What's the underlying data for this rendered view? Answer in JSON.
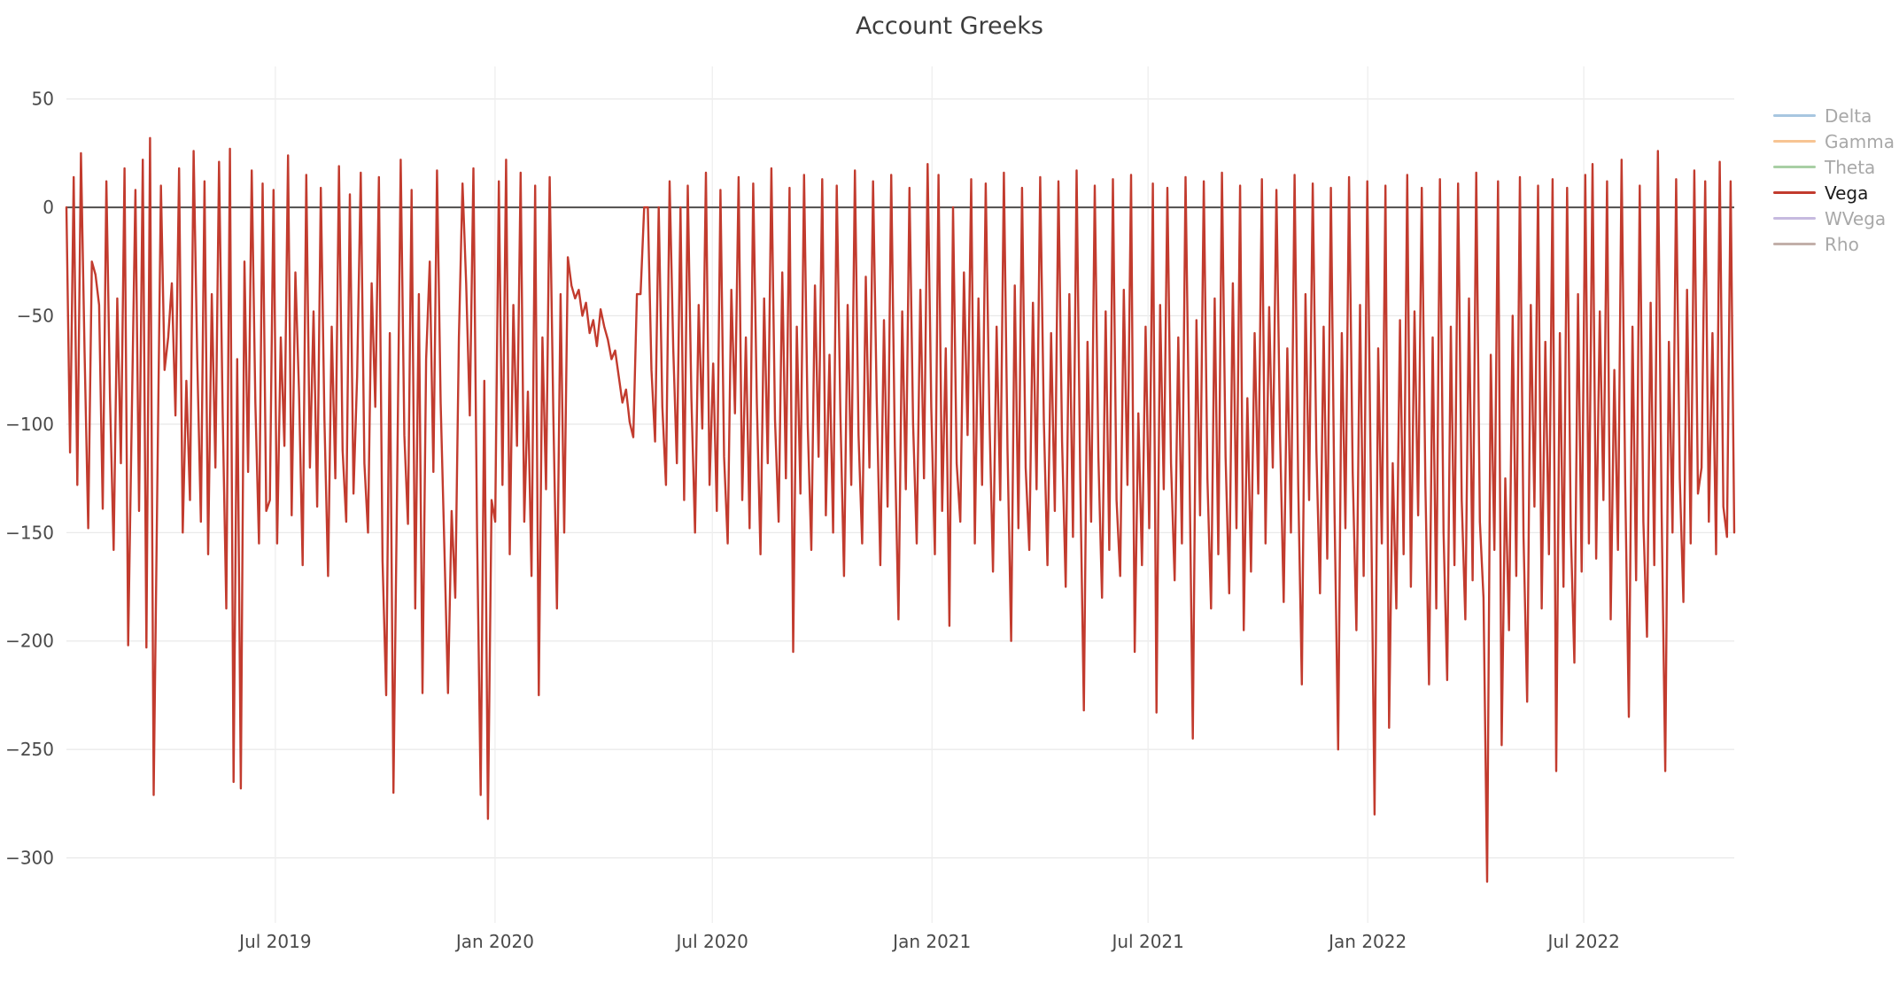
{
  "title": "Account Greeks",
  "colors": {
    "background": "#ffffff",
    "grid_h": "#e9e9e9",
    "grid_v": "#eeeeee",
    "zero_line": "#3b3b3b",
    "tick_text": "#4a4a4a",
    "title_text": "#3d3d3d",
    "legend_text_muted": "#a8a8a8",
    "legend_text_active": "#1c1c1c"
  },
  "legend": {
    "position": "right",
    "items": [
      {
        "name": "Delta",
        "color": "#a7c6e0",
        "muted": true
      },
      {
        "name": "Gamma",
        "color": "#f7c493",
        "muted": true
      },
      {
        "name": "Theta",
        "color": "#a8cfa4",
        "muted": true
      },
      {
        "name": "Vega",
        "color": "#c23b2e",
        "muted": false
      },
      {
        "name": "WVega",
        "color": "#c6badf",
        "muted": true
      },
      {
        "name": "Rho",
        "color": "#c2afa9",
        "muted": true
      }
    ]
  },
  "chart_data": {
    "type": "line",
    "title": "Account Greeks",
    "xlabel": "",
    "ylabel": "",
    "grid": true,
    "legend_position": "right",
    "x_start": "2019-01-07",
    "x_end": "2022-11-04",
    "ylim": [
      -330,
      65
    ],
    "yticks": [
      50,
      0,
      -50,
      -100,
      -150,
      -200,
      -250,
      -300
    ],
    "xticks": [
      {
        "label": "Jul 2019",
        "date": "2019-07-01"
      },
      {
        "label": "Jan 2020",
        "date": "2020-01-01"
      },
      {
        "label": "Jul 2020",
        "date": "2020-07-01"
      },
      {
        "label": "Jan 2021",
        "date": "2021-01-01"
      },
      {
        "label": "Jul 2021",
        "date": "2021-07-01"
      },
      {
        "label": "Jan 2022",
        "date": "2022-01-01"
      },
      {
        "label": "Jul 2022",
        "date": "2022-07-01"
      }
    ],
    "zero_line": true,
    "series": [
      {
        "name": "Delta",
        "color": "#a7c6e0",
        "muted": true,
        "constant_value": 0
      },
      {
        "name": "Gamma",
        "color": "#f7c493",
        "muted": true,
        "constant_value": 0
      },
      {
        "name": "Theta",
        "color": "#a8cfa4",
        "muted": true,
        "constant_value": 0
      },
      {
        "name": "Vega",
        "color": "#c23b2e",
        "muted": false,
        "values": [
          0,
          -113,
          14,
          -128,
          25,
          -67,
          -148,
          -25,
          -31,
          -45,
          -139,
          12,
          -88,
          -158,
          -42,
          -118,
          18,
          -202,
          -96,
          8,
          -140,
          22,
          -203,
          32,
          -271,
          -129,
          10,
          -75,
          -60,
          -35,
          -96,
          18,
          -150,
          -80,
          -135,
          26,
          -70,
          -145,
          12,
          -160,
          -40,
          -120,
          21,
          -95,
          -185,
          27,
          -265,
          -70,
          -268,
          -25,
          -122,
          17,
          -90,
          -155,
          11,
          -140,
          -135,
          8,
          -155,
          -60,
          -110,
          24,
          -142,
          -30,
          -85,
          -165,
          15,
          -120,
          -48,
          -138,
          9,
          -98,
          -170,
          -55,
          -125,
          19,
          -112,
          -145,
          6,
          -132,
          -78,
          16,
          -118,
          -150,
          -35,
          -92,
          14,
          -163,
          -225,
          -58,
          -270,
          -130,
          22,
          -105,
          -146,
          8,
          -185,
          -40,
          -224,
          -70,
          -25,
          -122,
          17,
          -90,
          -155,
          -224,
          -140,
          -180,
          -60,
          11,
          -35,
          -96,
          18,
          -150,
          -271,
          -80,
          -282,
          -135,
          -145,
          12,
          -128,
          22,
          -160,
          -45,
          -110,
          16,
          -145,
          -85,
          -170,
          10,
          -225,
          -60,
          -130,
          14,
          -95,
          -185,
          -40,
          -150,
          -23,
          -36,
          -42,
          -38,
          -50,
          -44,
          -58,
          -52,
          -64,
          -47,
          -55,
          -61,
          -70,
          -66,
          -78,
          -90,
          -84,
          -99,
          -106,
          -40,
          -40,
          0,
          0,
          -75,
          -108,
          0,
          -92,
          -128,
          12,
          -65,
          -118,
          0,
          -135,
          10,
          -88,
          -150,
          -45,
          -102,
          16,
          -128,
          -72,
          -140,
          8,
          -115,
          -155,
          -38,
          -95,
          14,
          -135,
          -60,
          -148,
          11,
          -90,
          -160,
          -42,
          -118,
          18,
          -98,
          -145,
          -30,
          -125,
          9,
          -205,
          -55,
          -132,
          15,
          -100,
          -158,
          -36,
          -115,
          13,
          -142,
          -68,
          -150,
          10,
          -95,
          -170,
          -45,
          -128,
          17,
          -105,
          -155,
          -32,
          -120,
          12,
          -88,
          -165,
          -52,
          -138,
          15,
          -110,
          -190,
          -48,
          -130,
          9,
          -100,
          -155,
          -38,
          -125,
          20,
          -92,
          -160,
          15,
          -140,
          -65,
          -193,
          0,
          -118,
          -145,
          -30,
          -105,
          13,
          -155,
          -42,
          -128,
          11,
          -95,
          -168,
          -55,
          -135,
          16,
          -112,
          -200,
          -36,
          -148,
          9,
          -120,
          -158,
          -44,
          -130,
          14,
          -98,
          -165,
          -58,
          -140,
          12,
          -108,
          -175,
          -40,
          -152,
          17,
          -125,
          -232,
          -62,
          -145,
          10,
          -115,
          -180,
          -48,
          -158,
          13,
          -135,
          -170,
          -38,
          -128,
          15,
          -205,
          -95,
          -165,
          -55,
          -148,
          11,
          -233,
          -45,
          -130,
          9,
          -118,
          -172,
          -60,
          -155,
          14,
          -108,
          -245,
          -52,
          -142,
          12,
          -125,
          -185,
          -42,
          -160,
          16,
          -115,
          -178,
          -35,
          -148,
          10,
          -195,
          -88,
          -168,
          -58,
          -132,
          13,
          -155,
          -46,
          -120,
          8,
          -105,
          -182,
          -65,
          -150,
          15,
          -128,
          -220,
          -40,
          -135,
          11,
          -112,
          -178,
          -55,
          -162,
          9,
          -140,
          -250,
          -58,
          -148,
          14,
          -122,
          -195,
          -45,
          -170,
          12,
          -130,
          -280,
          -65,
          -155,
          10,
          -240,
          -118,
          -185,
          -52,
          -160,
          15,
          -175,
          -48,
          -142,
          9,
          -128,
          -220,
          -60,
          -185,
          13,
          -150,
          -218,
          -55,
          -165,
          11,
          -135,
          -190,
          -42,
          -172,
          16,
          -145,
          -180,
          -311,
          -68,
          -158,
          12,
          -248,
          -125,
          -195,
          -50,
          -170,
          14,
          -152,
          -228,
          -45,
          -138,
          10,
          -185,
          -62,
          -160,
          13,
          -260,
          -58,
          -175,
          9,
          -148,
          -210,
          -40,
          -168,
          15,
          -155,
          20,
          -162,
          -48,
          -135,
          12,
          -190,
          -75,
          -158,
          22,
          -128,
          -235,
          -55,
          -172,
          10,
          -145,
          -198,
          -44,
          -165,
          26,
          -140,
          -260,
          -62,
          -150,
          13,
          -125,
          -182,
          -38,
          -155,
          17,
          -132,
          -120,
          12,
          -145,
          -58,
          -160,
          21,
          -138,
          -152,
          12,
          -150
        ]
      },
      {
        "name": "WVega",
        "color": "#c6badf",
        "muted": true,
        "constant_value": 0
      },
      {
        "name": "Rho",
        "color": "#c2afa9",
        "muted": true,
        "constant_value": 0
      }
    ]
  }
}
